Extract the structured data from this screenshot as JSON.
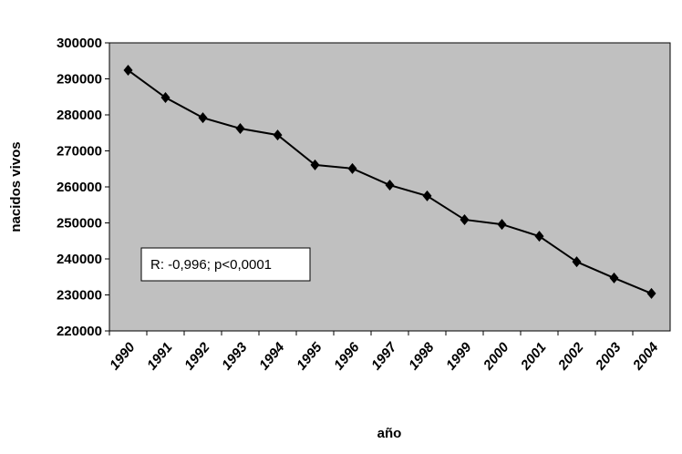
{
  "chart_data": {
    "type": "line",
    "categories": [
      "1990",
      "1991",
      "1992",
      "1993",
      "1994",
      "1995",
      "1996",
      "1997",
      "1998",
      "1999",
      "2000",
      "2001",
      "2002",
      "2003",
      "2004"
    ],
    "series": [
      {
        "name": "nacidos vivos",
        "color": "#000000",
        "values": [
          292400,
          284800,
          279200,
          276200,
          274400,
          266100,
          265100,
          260500,
          257500,
          250900,
          249600,
          246300,
          239200,
          234700,
          230400
        ]
      }
    ],
    "y_label": "nacidos vivos",
    "x_label": "año",
    "annotation": "R: -0,996; p<0,0001",
    "ylim": [
      220000,
      300000
    ],
    "yticks": [
      220000,
      230000,
      240000,
      250000,
      260000,
      270000,
      280000,
      290000,
      300000
    ],
    "plot_background": "#c0c0c0"
  }
}
